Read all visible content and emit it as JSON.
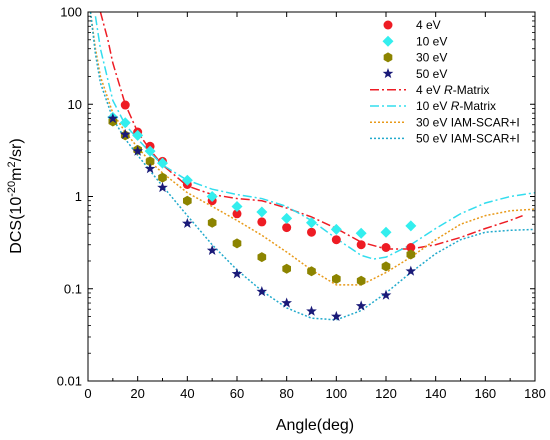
{
  "chart_data": {
    "type": "scatter",
    "title": "",
    "xlabel": "Angle(deg)",
    "ylabel": {
      "prefix": "DCS(10",
      "sup1": "-20",
      "mid": "m",
      "sup2": "2",
      "suffix": "/sr)"
    },
    "xlim": [
      0,
      180
    ],
    "ylim": [
      0.01,
      100
    ],
    "yscale": "log",
    "grid": false,
    "legend_position": "top-right",
    "x_ticks": [
      0,
      20,
      40,
      60,
      80,
      100,
      120,
      140,
      160,
      180
    ],
    "y_ticks": [
      {
        "value": 0.01,
        "label": "0.01"
      },
      {
        "value": 0.1,
        "label": "0.1"
      },
      {
        "value": 1,
        "label": "1"
      },
      {
        "value": 10,
        "label": "10"
      },
      {
        "value": 100,
        "label": "100"
      }
    ],
    "series": [
      {
        "name": "4 eV",
        "kind": "points",
        "marker": "circle",
        "color": "#ee1c24",
        "x": [
          15,
          20,
          25,
          30,
          40,
          50,
          60,
          70,
          80,
          90,
          100,
          110,
          120,
          130
        ],
        "y": [
          9.8,
          5.0,
          3.5,
          2.4,
          1.35,
          0.9,
          0.65,
          0.53,
          0.46,
          0.41,
          0.34,
          0.3,
          0.28,
          0.28
        ]
      },
      {
        "name": "10 eV",
        "kind": "points",
        "marker": "diamond",
        "color": "#33eeee",
        "x": [
          10,
          15,
          20,
          25,
          30,
          40,
          50,
          60,
          70,
          80,
          90,
          100,
          110,
          120,
          130
        ],
        "y": [
          7.2,
          6.3,
          4.6,
          3.1,
          2.3,
          1.5,
          1.0,
          0.78,
          0.68,
          0.58,
          0.52,
          0.44,
          0.4,
          0.41,
          0.48
        ]
      },
      {
        "name": "30 eV",
        "kind": "points",
        "marker": "hexagon",
        "color": "#8c8400",
        "x": [
          10,
          15,
          20,
          25,
          30,
          40,
          50,
          60,
          70,
          80,
          90,
          100,
          110,
          120,
          130
        ],
        "y": [
          6.5,
          4.6,
          3.2,
          2.4,
          1.6,
          0.9,
          0.52,
          0.31,
          0.22,
          0.165,
          0.155,
          0.128,
          0.122,
          0.175,
          0.235
        ]
      },
      {
        "name": "50 eV",
        "kind": "points",
        "marker": "star",
        "color": "#1a1a78",
        "x": [
          10,
          15,
          20,
          25,
          30,
          40,
          50,
          60,
          70,
          80,
          90,
          100,
          110,
          120,
          130
        ],
        "y": [
          7.0,
          4.7,
          3.1,
          2.0,
          1.25,
          0.51,
          0.26,
          0.145,
          0.093,
          0.07,
          0.057,
          0.05,
          0.065,
          0.085,
          0.155
        ]
      },
      {
        "name": "4 eV R-Matrix",
        "kind": "line",
        "dash": "dashdot",
        "color": "#ee1c24",
        "x": [
          5,
          8,
          10,
          15,
          20,
          25,
          30,
          40,
          50,
          60,
          70,
          80,
          90,
          100,
          110,
          120,
          130,
          140,
          150,
          160,
          170,
          175
        ],
        "y": [
          100,
          50,
          28,
          10,
          5.0,
          3.2,
          2.2,
          1.3,
          1.05,
          0.95,
          0.9,
          0.75,
          0.6,
          0.45,
          0.32,
          0.27,
          0.27,
          0.3,
          0.36,
          0.45,
          0.55,
          0.62
        ]
      },
      {
        "name": "10 eV R-Matrix",
        "kind": "line",
        "dash": "dashdot",
        "color": "#33ddee",
        "x": [
          3,
          5,
          10,
          15,
          20,
          25,
          30,
          40,
          50,
          60,
          70,
          80,
          90,
          100,
          110,
          115,
          120,
          130,
          140,
          150,
          160,
          170,
          180
        ],
        "y": [
          90,
          40,
          11,
          6.0,
          4.2,
          3.0,
          2.2,
          1.5,
          1.2,
          1.05,
          0.95,
          0.78,
          0.55,
          0.35,
          0.23,
          0.21,
          0.22,
          0.3,
          0.45,
          0.65,
          0.85,
          1.0,
          1.1
        ]
      },
      {
        "name": "30 eV IAM-SCAR+I",
        "kind": "line",
        "dash": "dot",
        "color": "#e89a1a",
        "x": [
          1,
          3,
          5,
          10,
          15,
          20,
          25,
          30,
          40,
          50,
          60,
          70,
          80,
          90,
          100,
          110,
          120,
          130,
          140,
          150,
          160,
          170,
          180
        ],
        "y": [
          100,
          40,
          20,
          8,
          5.0,
          3.4,
          2.4,
          1.8,
          1.1,
          0.78,
          0.55,
          0.38,
          0.25,
          0.16,
          0.11,
          0.11,
          0.15,
          0.22,
          0.34,
          0.5,
          0.62,
          0.7,
          0.73
        ]
      },
      {
        "name": "50 eV IAM-SCAR+I",
        "kind": "line",
        "dash": "dot",
        "color": "#22aacc",
        "x": [
          1,
          3,
          5,
          10,
          15,
          20,
          25,
          30,
          40,
          50,
          60,
          70,
          80,
          90,
          100,
          110,
          120,
          130,
          140,
          150,
          160,
          170,
          180
        ],
        "y": [
          100,
          35,
          17,
          7,
          4.2,
          2.8,
          1.9,
          1.3,
          0.62,
          0.3,
          0.16,
          0.095,
          0.062,
          0.048,
          0.046,
          0.058,
          0.09,
          0.15,
          0.24,
          0.34,
          0.41,
          0.43,
          0.44
        ]
      }
    ]
  }
}
